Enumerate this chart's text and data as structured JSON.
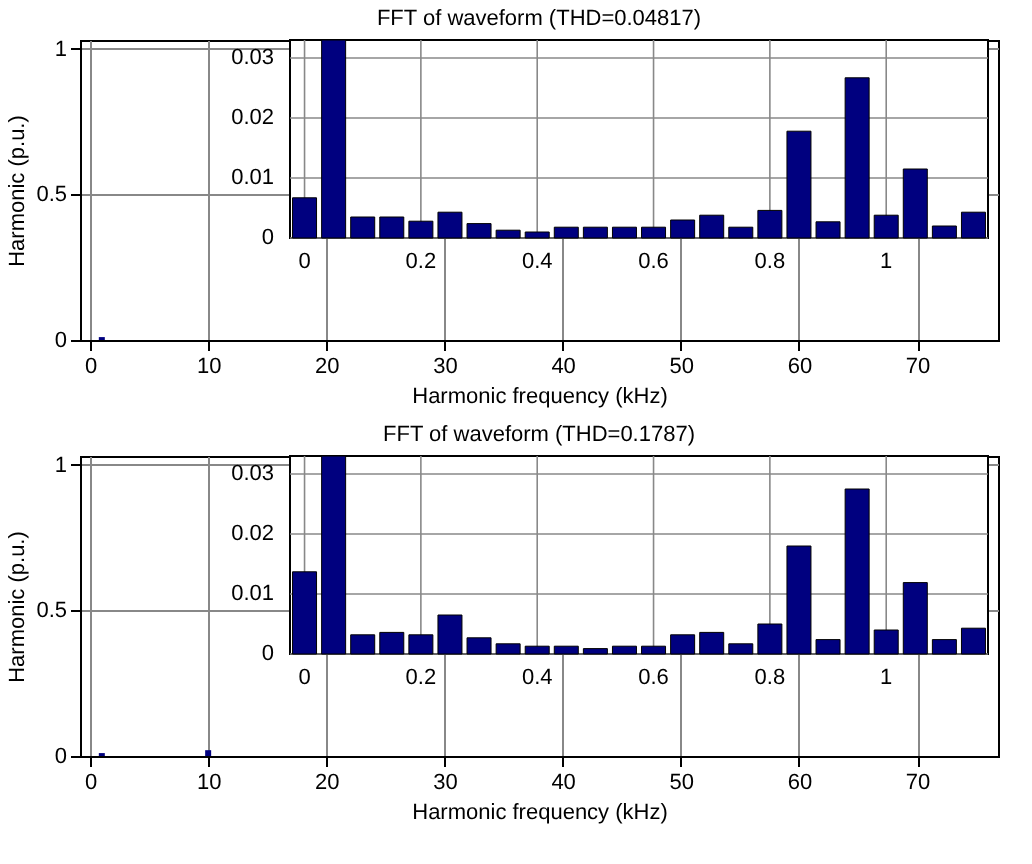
{
  "chart_data": [
    {
      "type": "bar",
      "title": "FFT of waveform (THD=0.04817)",
      "xlabel": "Harmonic frequency (kHz)",
      "ylabel": "Harmonic (p.u.)",
      "x": [
        1
      ],
      "values": [
        0.01
      ],
      "color": "#00007f",
      "xlim": [
        0,
        76
      ],
      "xticks": [
        0,
        10,
        20,
        30,
        40,
        50,
        60,
        70
      ],
      "ylim": [
        0,
        1.03
      ],
      "yticks": [
        0,
        0.5,
        1
      ],
      "grid": true
    },
    {
      "type": "bar",
      "x": [
        0,
        0.05,
        0.1,
        0.15,
        0.2,
        0.25,
        0.3,
        0.35,
        0.4,
        0.45,
        0.5,
        0.55,
        0.6,
        0.65,
        0.7,
        0.75,
        0.8,
        0.85,
        0.9,
        0.95,
        1.0,
        1.05,
        1.1,
        1.15
      ],
      "values": [
        0.0067,
        0.033,
        0.0035,
        0.0035,
        0.0028,
        0.0043,
        0.0024,
        0.0013,
        0.001,
        0.0018,
        0.0018,
        0.0018,
        0.0018,
        0.003,
        0.0038,
        0.0018,
        0.0046,
        0.0178,
        0.0027,
        0.0267,
        0.0038,
        0.0115,
        0.002,
        0.0043
      ],
      "color": "#00007f",
      "xlim": [
        -0.025,
        1.175
      ],
      "xticks": [
        0,
        0.2,
        0.4,
        0.6,
        0.8,
        1
      ],
      "ylim": [
        0,
        0.033
      ],
      "yticks": [
        0,
        0.01,
        0.02,
        0.03
      ],
      "grid": true
    },
    {
      "type": "bar",
      "title": "FFT of waveform (THD=0.1787)",
      "xlabel": "Harmonic frequency (kHz)",
      "ylabel": "Harmonic (p.u.)",
      "x": [
        1,
        10
      ],
      "values": [
        0.01,
        0.02
      ],
      "color": "#00007f",
      "xlim": [
        0,
        76
      ],
      "xticks": [
        0,
        10,
        20,
        30,
        40,
        50,
        60,
        70
      ],
      "ylim": [
        0,
        1.03
      ],
      "yticks": [
        0,
        0.5,
        1
      ],
      "grid": true
    },
    {
      "type": "bar",
      "x": [
        0,
        0.05,
        0.1,
        0.15,
        0.2,
        0.25,
        0.3,
        0.35,
        0.4,
        0.45,
        0.5,
        0.55,
        0.6,
        0.65,
        0.7,
        0.75,
        0.8,
        0.85,
        0.9,
        0.95,
        1.0,
        1.05,
        1.1,
        1.15
      ],
      "values": [
        0.0137,
        0.033,
        0.0032,
        0.0036,
        0.0032,
        0.0065,
        0.0027,
        0.0017,
        0.0013,
        0.0013,
        0.0009,
        0.0013,
        0.0013,
        0.0032,
        0.0036,
        0.0017,
        0.005,
        0.018,
        0.0024,
        0.0275,
        0.004,
        0.0119,
        0.0024,
        0.0043
      ],
      "color": "#00007f",
      "xlim": [
        -0.025,
        1.175
      ],
      "xticks": [
        0,
        0.2,
        0.4,
        0.6,
        0.8,
        1
      ],
      "ylim": [
        0,
        0.033
      ],
      "yticks": [
        0,
        0.01,
        0.02,
        0.03
      ],
      "grid": true
    }
  ]
}
